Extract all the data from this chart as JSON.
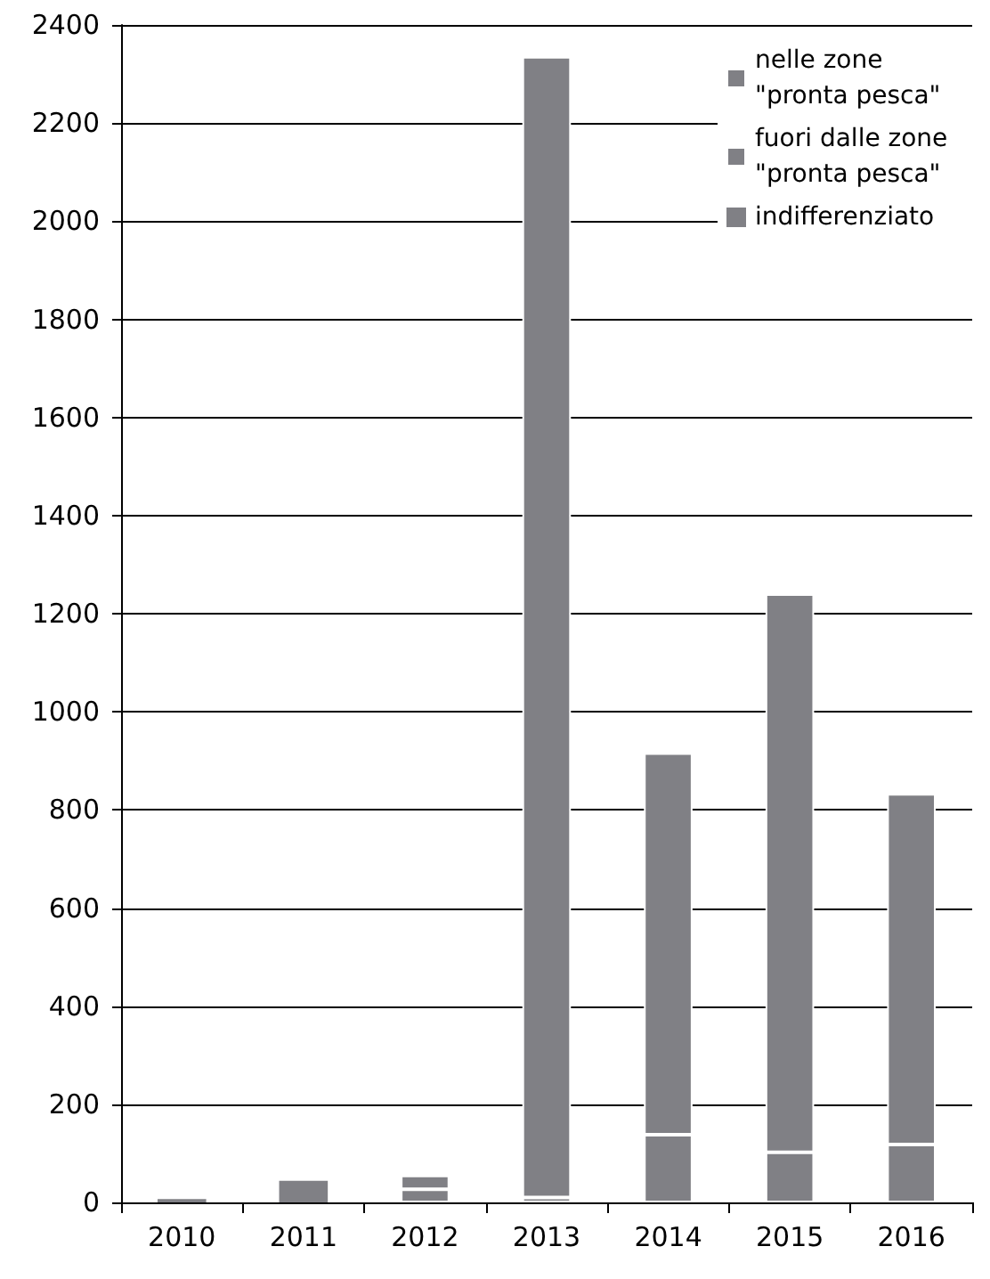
{
  "chart_data": {
    "type": "bar",
    "stacked": true,
    "categories": [
      "2010",
      "2011",
      "2012",
      "2013",
      "2014",
      "2015",
      "2016"
    ],
    "series": [
      {
        "name": "indifferenziato",
        "color": "#808085",
        "values": [
          7,
          44,
          null,
          null,
          null,
          null,
          null
        ]
      },
      {
        "name": "fuori dalle zone \"pronta pesca\"",
        "color": "#808085",
        "values": [
          null,
          null,
          27,
          10,
          138,
          102,
          118
        ]
      },
      {
        "name": "nelle zone \"pronta pesca\"",
        "color": "#808085",
        "values": [
          null,
          null,
          28,
          2325,
          778,
          1138,
          715
        ]
      }
    ],
    "ylim": [
      0,
      2400
    ],
    "yticks": [
      0,
      200,
      400,
      600,
      800,
      1000,
      1200,
      1400,
      1600,
      1800,
      2000,
      2200,
      2400
    ],
    "grid": "y",
    "legend": "top right"
  }
}
